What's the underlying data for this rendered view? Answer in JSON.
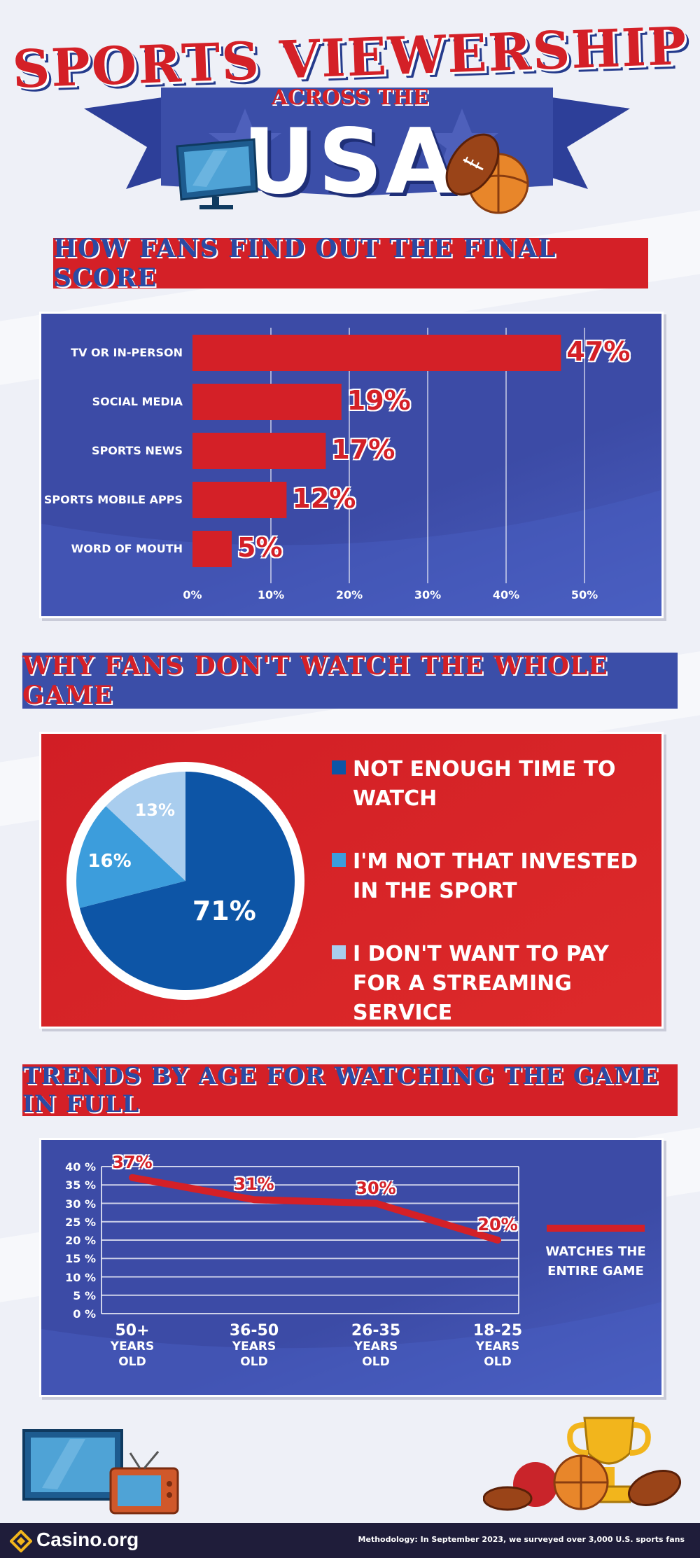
{
  "header": {
    "title": "SPORTS VIEWERSHIP",
    "subtitle": "ACROSS THE",
    "country": "USA"
  },
  "sections": {
    "final_score": "HOW FANS FIND OUT THE FINAL SCORE",
    "whole_game": "WHY FANS DON'T WATCH THE WHOLE GAME",
    "age_trends": "TRENDS BY AGE FOR WATCHING THE GAME IN FULL"
  },
  "colors": {
    "red": "#d42027",
    "blue": "#3c4ba6",
    "dark_blue": "#0d55a6",
    "mid_blue": "#3c9ddc",
    "light_blue": "#a9cdee"
  },
  "chart_data": [
    {
      "type": "bar",
      "orientation": "horizontal",
      "categories": [
        "TV OR IN-PERSON",
        "SOCIAL MEDIA",
        "SPORTS NEWS",
        "SPORTS MOBILE APPS",
        "WORD OF MOUTH"
      ],
      "values": [
        47,
        19,
        17,
        12,
        5
      ],
      "value_labels": [
        "47%",
        "19%",
        "17%",
        "12%",
        "5%"
      ],
      "xticks": [
        "0%",
        "10%",
        "20%",
        "30%",
        "40%",
        "50%"
      ],
      "xlim": [
        0,
        50
      ],
      "grid": true
    },
    {
      "type": "pie",
      "labels": [
        "NOT ENOUGH TIME TO WATCH",
        "I'M NOT THAT INVESTED IN THE SPORT",
        "I DON'T WANT TO PAY FOR A STREAMING SERVICE"
      ],
      "values": [
        71,
        16,
        13
      ],
      "value_labels": [
        "71%",
        "16%",
        "13%"
      ],
      "colors": [
        "#0d55a6",
        "#3c9ddc",
        "#a9cdee"
      ],
      "legend": "right"
    },
    {
      "type": "line",
      "categories": [
        "50+ YEARS OLD",
        "36-50 YEARS OLD",
        "26-35 YEARS OLD",
        "18-25 YEARS OLD"
      ],
      "category_lines": [
        [
          "50+",
          "YEARS",
          "OLD"
        ],
        [
          "36-50",
          "YEARS",
          "OLD"
        ],
        [
          "26-35",
          "YEARS",
          "OLD"
        ],
        [
          "18-25",
          "YEARS",
          "OLD"
        ]
      ],
      "series": [
        {
          "name": "WATCHES THE ENTIRE GAME",
          "values": [
            37,
            31,
            30,
            20
          ]
        }
      ],
      "value_labels": [
        "37%",
        "31%",
        "30%",
        "20%"
      ],
      "yticks": [
        "40 %",
        "35 %",
        "30 %",
        "25 %",
        "20 %",
        "15 %",
        "10 %",
        "5 %",
        "0 %"
      ],
      "ylim": [
        0,
        40
      ],
      "grid": true,
      "legend": "right"
    }
  ],
  "legend_line": [
    "WATCHES THE",
    "ENTIRE GAME"
  ],
  "footer": {
    "logo": "Casino.org",
    "methodology": "Methodology: In September 2023, we surveyed over 3,000 U.S. sports fans"
  }
}
